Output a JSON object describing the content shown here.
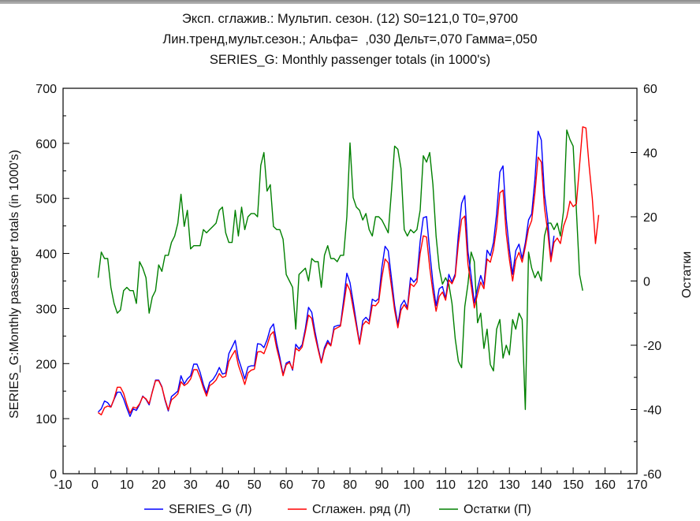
{
  "window": {
    "accent": "#8a8a8a"
  },
  "chart_data": {
    "type": "line",
    "title_lines": [
      "Эксп. сглажив.: Мультип. сезон. (12) S0=121,0 T0=,9700",
      "Лин.тренд,мульт.сезон.; Альфа=  ,030 Дельт=,070 Гамма=,050",
      "SERIES_G: Monthly passenger totals (in 1000's)"
    ],
    "xlabel": "",
    "ylabel_left": "SERIES_G:Monthly passenger totals (in 1000's)",
    "ylabel_right": "Остатки",
    "xlim": [
      -10,
      170
    ],
    "ylim_left": [
      0,
      700
    ],
    "ylim_right": [
      -60,
      60
    ],
    "xticks": [
      -10,
      0,
      10,
      20,
      30,
      40,
      50,
      60,
      70,
      80,
      90,
      100,
      110,
      120,
      130,
      140,
      150,
      160,
      170
    ],
    "yticks_left": [
      0,
      100,
      200,
      300,
      400,
      500,
      600,
      700
    ],
    "yticks_right": [
      -60,
      -40,
      -20,
      0,
      20,
      40,
      60
    ],
    "grid": false,
    "legend_position": "bottom",
    "series": [
      {
        "name": "SERIES_G (Л)",
        "axis": "left",
        "color": "#0000ff",
        "x_start": 1,
        "values": [
          112,
          118,
          132,
          129,
          121,
          135,
          148,
          148,
          136,
          119,
          104,
          118,
          115,
          126,
          141,
          135,
          125,
          149,
          170,
          170,
          158,
          133,
          114,
          140,
          145,
          150,
          178,
          163,
          172,
          178,
          199,
          199,
          184,
          162,
          146,
          166,
          171,
          180,
          193,
          181,
          183,
          218,
          230,
          242,
          209,
          191,
          172,
          194,
          196,
          196,
          236,
          235,
          229,
          243,
          264,
          272,
          237,
          211,
          180,
          201,
          204,
          188,
          235,
          227,
          234,
          264,
          302,
          293,
          259,
          229,
          203,
          229,
          242,
          233,
          267,
          269,
          270,
          315,
          364,
          347,
          312,
          274,
          237,
          278,
          284,
          277,
          317,
          313,
          318,
          374,
          413,
          405,
          355,
          306,
          271,
          306,
          315,
          301,
          356,
          348,
          355,
          422,
          465,
          467,
          404,
          347,
          305,
          336,
          340,
          318,
          362,
          348,
          363,
          435,
          491,
          505,
          404,
          359,
          310,
          337,
          360,
          342,
          406,
          396,
          420,
          472,
          548,
          559,
          463,
          407,
          362,
          405,
          417,
          391,
          419,
          461,
          472,
          535,
          622,
          606,
          508,
          461,
          390,
          432
        ]
      },
      {
        "name": "Сглажен. ряд (Л)",
        "axis": "left",
        "color": "#ff0000",
        "x_start": 1,
        "values": [
          111,
          107,
          120,
          123,
          121,
          136,
          157,
          157,
          146,
          126,
          110,
          121,
          119,
          127,
          140,
          136,
          127,
          148,
          169,
          169,
          157,
          135,
          116,
          134,
          139,
          145,
          167,
          160,
          164,
          172,
          189,
          189,
          175,
          156,
          141,
          160,
          164,
          170,
          182,
          175,
          177,
          204,
          215,
          224,
          197,
          180,
          162,
          183,
          188,
          190,
          221,
          222,
          218,
          233,
          252,
          258,
          228,
          205,
          178,
          198,
          202,
          190,
          228,
          223,
          230,
          258,
          288,
          282,
          251,
          225,
          201,
          225,
          238,
          232,
          262,
          265,
          268,
          305,
          345,
          333,
          301,
          268,
          235,
          270,
          277,
          272,
          306,
          305,
          312,
          356,
          390,
          383,
          340,
          297,
          265,
          297,
          307,
          298,
          345,
          340,
          348,
          400,
          432,
          430,
          375,
          330,
          295,
          322,
          330,
          315,
          352,
          345,
          359,
          418,
          462,
          468,
          381,
          342,
          301,
          326,
          348,
          336,
          390,
          384,
          407,
          447,
          510,
          515,
          436,
          389,
          350,
          388,
          402,
          384,
          412,
          445,
          460,
          510,
          575,
          566,
          483,
          440,
          385,
          420,
          428,
          418,
          450,
          466,
          495,
          485,
          490,
          560,
          630,
          628,
          560,
          500,
          418,
          470
        ]
      },
      {
        "name": "Остатки (П)",
        "axis": "right",
        "color": "#008000",
        "x_start": 1,
        "values": [
          1,
          9,
          7,
          7,
          -2,
          -7,
          -10,
          -9,
          -3,
          -2,
          -3,
          -3,
          -7,
          6,
          4,
          1,
          -10,
          -5,
          -3,
          5,
          3,
          8,
          8,
          12,
          14,
          18,
          27,
          17,
          22,
          10,
          11,
          11,
          11,
          16,
          15,
          16,
          17,
          18,
          22,
          23,
          15,
          12,
          12,
          22,
          14,
          23,
          16,
          20,
          21,
          21,
          20,
          36,
          40,
          28,
          30,
          17,
          16,
          16,
          13,
          2,
          0,
          -2,
          -15,
          2,
          3,
          4,
          0,
          7,
          6,
          6,
          -2,
          8,
          11,
          7,
          7,
          6,
          8,
          8,
          20,
          43,
          26,
          23,
          22,
          19,
          21,
          16,
          14,
          20,
          20,
          19,
          17,
          15,
          28,
          42,
          41,
          35,
          16,
          14,
          16,
          15,
          16,
          22,
          39,
          37,
          40,
          30,
          14,
          4,
          -1,
          1,
          -1,
          -7,
          -18,
          -25,
          -27,
          -8,
          -1,
          9,
          6,
          -13,
          -10,
          -21,
          -15,
          -26,
          -28,
          -15,
          -12,
          -24,
          -20,
          -23,
          -12,
          -15,
          -10,
          -12,
          -40,
          9,
          4,
          1,
          3,
          0,
          14,
          18,
          18,
          16,
          18,
          14,
          22,
          47,
          44,
          42,
          22,
          2,
          -3
        ]
      }
    ],
    "legend": [
      "SERIES_G (Л)",
      "Сглажен. ряд (Л)",
      "Остатки (П)"
    ]
  }
}
